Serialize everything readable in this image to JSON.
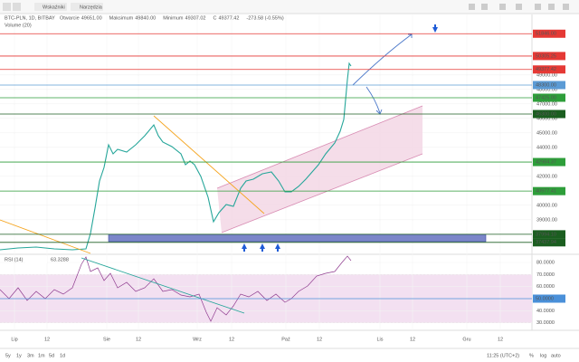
{
  "toolbar": {
    "indicators": "Wskaźniki",
    "tools": "Narzędzia"
  },
  "legend": {
    "symbol": "BTC-PLN, 1D, BITBAY",
    "fields": [
      {
        "label": "Otwarcie",
        "value": "49651.00"
      },
      {
        "label": "Maksimum",
        "value": "49840.00"
      },
      {
        "label": "Minimum",
        "value": "49307.02"
      },
      {
        "label": "C",
        "value": "49377.42"
      }
    ],
    "change": "-273.58 (-0.55%)",
    "volume": "Volume (20)"
  },
  "price_axis": {
    "ylim": [
      36675,
      53175
    ],
    "ticks": [
      {
        "value": 49000,
        "label": "49000.00"
      },
      {
        "value": 48000,
        "label": "48000.00"
      },
      {
        "value": 47000,
        "label": "47000.00"
      },
      {
        "value": 46000,
        "label": "46000.00"
      },
      {
        "value": 45000,
        "label": "45000.00"
      },
      {
        "value": 44000,
        "label": "44000.00"
      },
      {
        "value": 43000,
        "label": "43000.00"
      },
      {
        "value": 42000,
        "label": "42000.00"
      },
      {
        "value": 41000,
        "label": "41000.00"
      },
      {
        "value": 40000,
        "label": "40000.00"
      },
      {
        "value": 39000,
        "label": "39000.00"
      },
      {
        "value": 38000,
        "label": "38000.00"
      }
    ],
    "levels": [
      {
        "value": 51846,
        "label": "51846.00",
        "color": "#e53935"
      },
      {
        "value": 50305.25,
        "label": "50305.25",
        "color": "#e53935"
      },
      {
        "value": 49377.42,
        "label": "49377.42",
        "color": "#e53935"
      },
      {
        "value": 48300,
        "label": "48300.00",
        "color": "#5b9bd5"
      },
      {
        "value": 47425,
        "label": "47425.00",
        "color": "#2e9e3a"
      },
      {
        "value": 46300,
        "label": "46300.00",
        "color": "#1b5e20"
      },
      {
        "value": 42984.37,
        "label": "42984.37",
        "color": "#2e9e3a"
      },
      {
        "value": 40977.41,
        "label": "40977.41",
        "color": "#2e9e3a"
      },
      {
        "value": 37994.1,
        "label": "37994.10",
        "color": "#1b5e20"
      },
      {
        "value": 37437.94,
        "label": "37437.94",
        "color": "#1b5e20"
      }
    ]
  },
  "rsi": {
    "title": "RSI (14)",
    "value": "63.3288",
    "ylim": [
      24.5,
      86
    ],
    "band": [
      30,
      70
    ],
    "ticks": [
      {
        "value": 80,
        "label": "80.0000"
      },
      {
        "value": 70,
        "label": "70.0000"
      },
      {
        "value": 60,
        "label": "60.0000"
      },
      {
        "value": 40,
        "label": "40.0000"
      },
      {
        "value": 30,
        "label": "30.0000"
      }
    ],
    "levels": [
      {
        "value": 50,
        "label": "50.0000",
        "color": "#4a90d9"
      }
    ]
  },
  "time_axis": {
    "labels": [
      "Lip",
      "12",
      "Sie",
      "12",
      "Wrz",
      "12",
      "Paź",
      "12",
      "Lis",
      "12",
      "Gru",
      "12"
    ]
  },
  "footer": {
    "ranges": [
      "5y",
      "1y",
      "3m",
      "1m",
      "5d",
      "1d"
    ],
    "time": "11:25 (UTC+2)",
    "options": [
      "%",
      "log",
      "auto"
    ]
  }
}
